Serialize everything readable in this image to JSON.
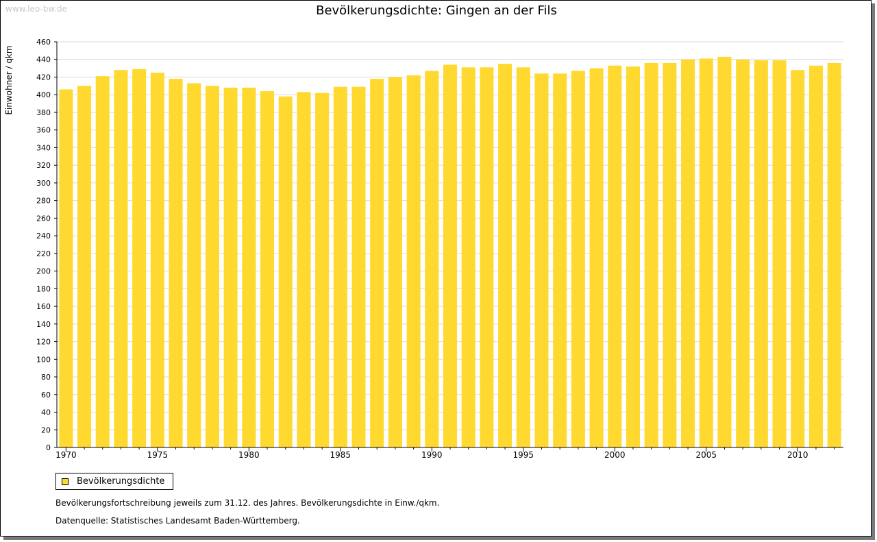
{
  "watermark": "www.leo-bw.de",
  "colors": {
    "bar": "#FFD92F",
    "grid": "#d9d9d9",
    "axis": "#000000"
  },
  "legend": {
    "label": "Bevölkerungsdichte"
  },
  "notes": {
    "line1": "Bevölkerungsfortschreibung jeweils zum 31.12. des Jahres. Bevölkerungsdichte in Einw./qkm.",
    "line2": "Datenquelle: Statistisches Landesamt Baden-Württemberg."
  },
  "chart_data": {
    "type": "bar",
    "title": "Bevölkerungsdichte: Gingen an der Fils",
    "xlabel": "",
    "ylabel": "Einwohner / qkm",
    "ylim": [
      0,
      460
    ],
    "ytick_step": 20,
    "xtick_labels": [
      "1970",
      "1975",
      "1980",
      "1985",
      "1990",
      "1995",
      "2000",
      "2005",
      "2010"
    ],
    "grid": true,
    "legend_position": "bottom-left",
    "categories": [
      "1970",
      "1971",
      "1972",
      "1973",
      "1974",
      "1975",
      "1976",
      "1977",
      "1978",
      "1979",
      "1980",
      "1981",
      "1982",
      "1983",
      "1984",
      "1985",
      "1986",
      "1987",
      "1988",
      "1989",
      "1990",
      "1991",
      "1992",
      "1993",
      "1994",
      "1995",
      "1996",
      "1997",
      "1998",
      "1999",
      "2000",
      "2001",
      "2002",
      "2003",
      "2004",
      "2005",
      "2006",
      "2007",
      "2008",
      "2009",
      "2010",
      "2011",
      "2012"
    ],
    "series": [
      {
        "name": "Bevölkerungsdichte",
        "values": [
          406,
          410,
          421,
          428,
          429,
          425,
          418,
          413,
          410,
          408,
          408,
          404,
          398,
          403,
          402,
          409,
          409,
          418,
          420,
          422,
          427,
          434,
          431,
          431,
          435,
          431,
          424,
          424,
          427,
          430,
          433,
          432,
          436,
          436,
          440,
          441,
          443,
          440,
          439,
          439,
          428,
          433,
          436
        ]
      }
    ]
  }
}
